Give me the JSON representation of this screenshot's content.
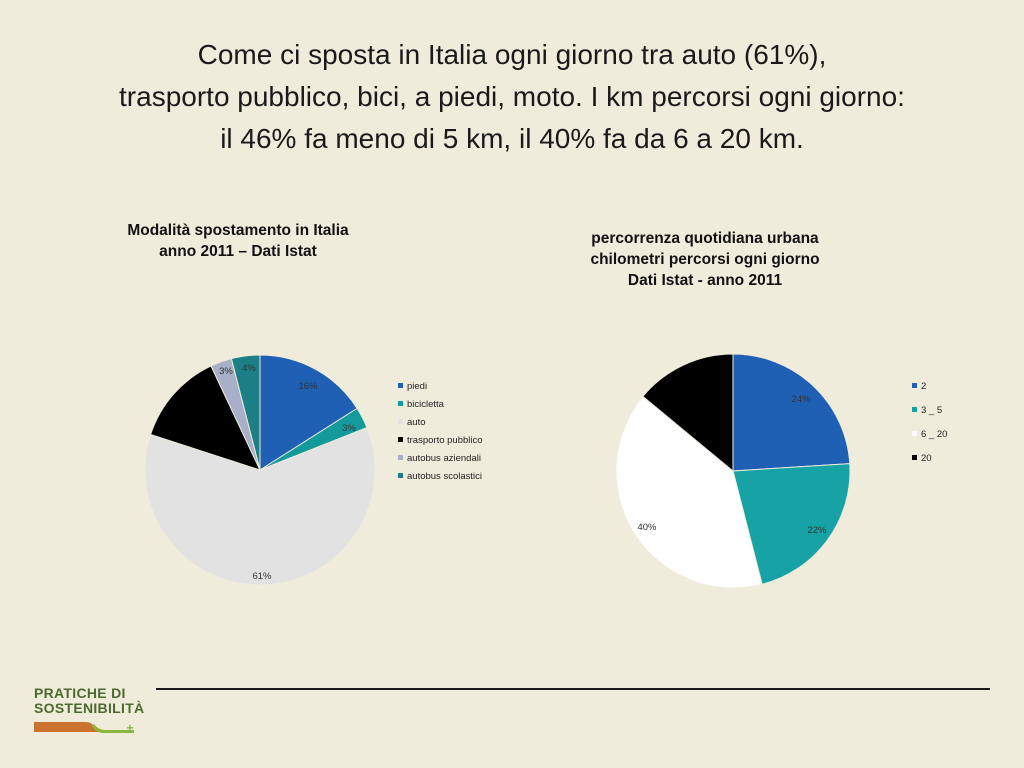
{
  "slide": {
    "title_lines": [
      "Come ci sposta in Italia ogni giorno tra auto (61%),",
      "trasporto pubblico, bici, a piedi, moto.  I km percorsi ogni giorno:",
      "il 46% fa meno di 5 km, il 40% fa da 6 a 20 km."
    ]
  },
  "logo": {
    "line1": "PRATICHE DI",
    "line2": "SOSTENIBILITÀ",
    "colors": {
      "green": "#4a6b2e",
      "orange": "#c9732e",
      "lime": "#8ab83a"
    }
  },
  "chart_data": [
    {
      "type": "pie",
      "title_lines": [
        "Modalità spostamento in Italia",
        "anno 2011 – Dati Istat"
      ],
      "categories": [
        "piedi",
        "bicicletta",
        "auto",
        "trasporto pubblico",
        "autobus aziendali",
        "autobus scolastici"
      ],
      "values": [
        16,
        3,
        61,
        13,
        3,
        4
      ],
      "labels": [
        "16%",
        "3%",
        "61%",
        "",
        "3%",
        "4%"
      ],
      "colors": [
        "#1f5fb4",
        "#159a9c",
        "#e2e2e2",
        "#000000",
        "#a7afc9",
        "#1c7f86"
      ],
      "legend": "right"
    },
    {
      "type": "pie",
      "title_lines": [
        "percorrenza quotidiana urbana",
        "chilometri percorsi ogni giorno",
        "Dati Istat - anno 2011"
      ],
      "categories": [
        "2",
        "3 _ 5",
        "6 _ 20",
        "20"
      ],
      "values": [
        24,
        22,
        40,
        14
      ],
      "labels": [
        "24%",
        "22%",
        "40%",
        ""
      ],
      "colors": [
        "#1f5fb4",
        "#17a3a5",
        "#ffffff",
        "#000000"
      ],
      "legend": "right"
    }
  ]
}
